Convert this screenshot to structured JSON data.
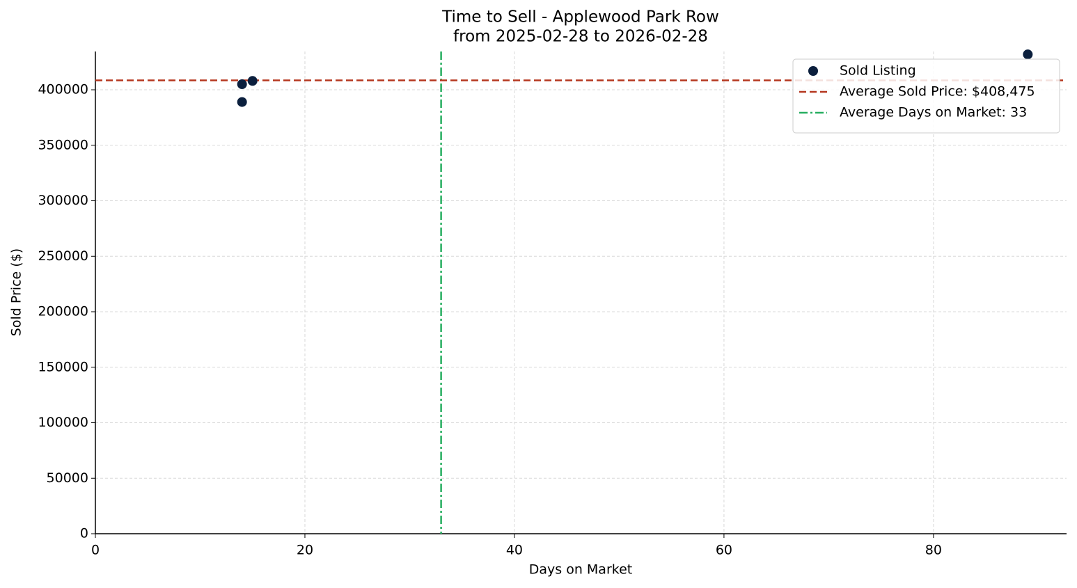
{
  "chart_data": {
    "type": "scatter",
    "title": "Time to Sell - Applewood Park Row",
    "subtitle": "from 2025-02-28 to 2026-02-28",
    "xlabel": "Days on Market",
    "ylabel": "Sold Price ($)",
    "series": [
      {
        "name": "Sold Listing",
        "color": "#0b1f3d",
        "x": [
          14,
          14,
          15,
          89
        ],
        "values": [
          405000,
          389000,
          408000,
          431900
        ]
      }
    ],
    "hlines": [
      {
        "name": "Average Sold Price: $408,475",
        "value": 408475,
        "color": "#b5371f",
        "style": "dashed"
      }
    ],
    "vlines": [
      {
        "name": "Average Days on Market: 33",
        "value": 33,
        "color": "#27ae60",
        "style": "dashdot"
      }
    ],
    "xlim": [
      0,
      92.7
    ],
    "ylim": [
      0,
      434500
    ],
    "xticks": [
      0,
      20,
      40,
      60,
      80
    ],
    "yticks": [
      0,
      50000,
      100000,
      150000,
      200000,
      250000,
      300000,
      350000,
      400000
    ],
    "grid": true,
    "legend": "upper right"
  }
}
